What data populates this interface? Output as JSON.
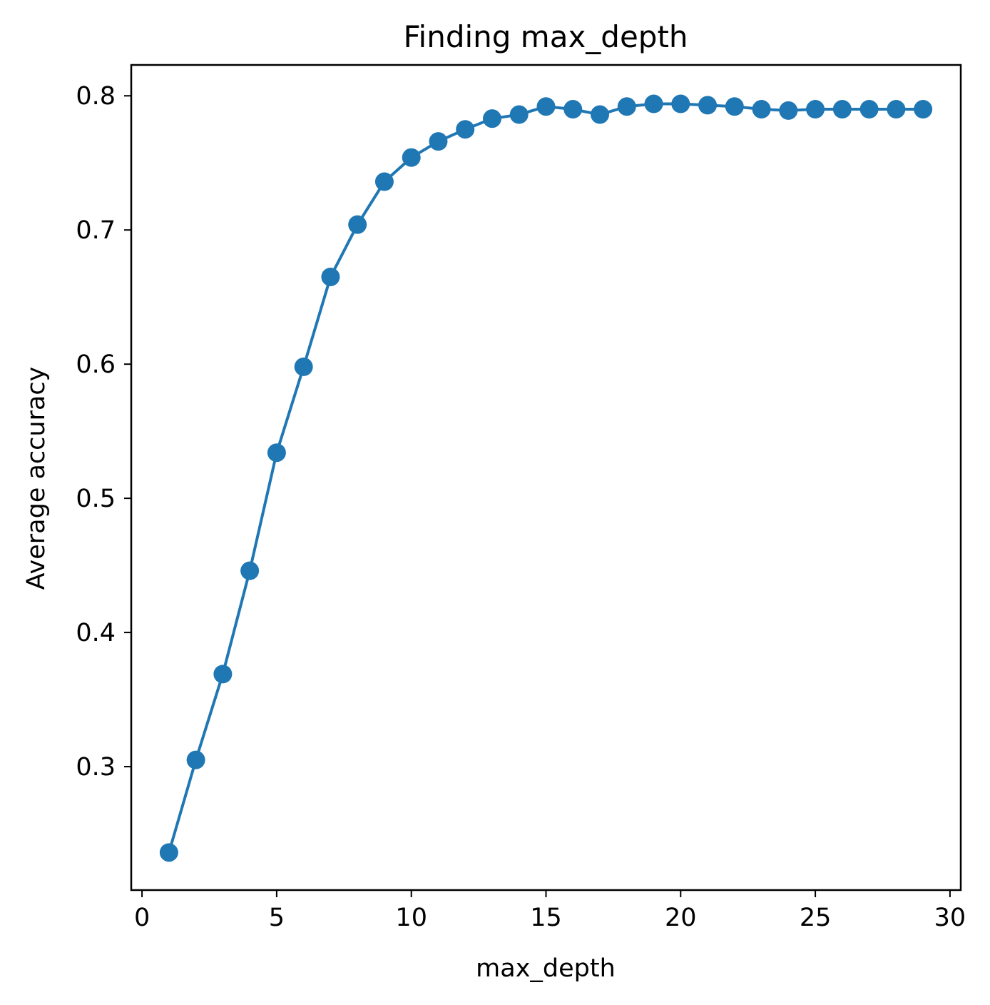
{
  "chart_data": {
    "type": "line",
    "title": "Finding max_depth",
    "xlabel": "max_depth",
    "ylabel": "Average accuracy",
    "xlim": [
      -0.4,
      30.4
    ],
    "ylim": [
      0.208,
      0.823
    ],
    "xticks": [
      0,
      5,
      10,
      15,
      20,
      25,
      30
    ],
    "xtick_labels": [
      "0",
      "5",
      "10",
      "15",
      "20",
      "25",
      "30"
    ],
    "yticks": [
      0.3,
      0.4,
      0.5,
      0.6,
      0.7,
      0.8
    ],
    "ytick_labels": [
      "0.3",
      "0.4",
      "0.5",
      "0.6",
      "0.7",
      "0.8"
    ],
    "grid": false,
    "marker": "circle",
    "series": [
      {
        "color": "#1f77b4",
        "x": [
          1,
          2,
          3,
          4,
          5,
          6,
          7,
          8,
          9,
          10,
          11,
          12,
          13,
          14,
          15,
          16,
          17,
          18,
          19,
          20,
          21,
          22,
          23,
          24,
          25,
          26,
          27,
          28,
          29
        ],
        "y": [
          0.236,
          0.305,
          0.369,
          0.446,
          0.534,
          0.598,
          0.665,
          0.704,
          0.736,
          0.754,
          0.766,
          0.775,
          0.783,
          0.786,
          0.792,
          0.79,
          0.786,
          0.792,
          0.794,
          0.794,
          0.793,
          0.792,
          0.79,
          0.789,
          0.79,
          0.79,
          0.79,
          0.79,
          0.79
        ]
      }
    ]
  }
}
